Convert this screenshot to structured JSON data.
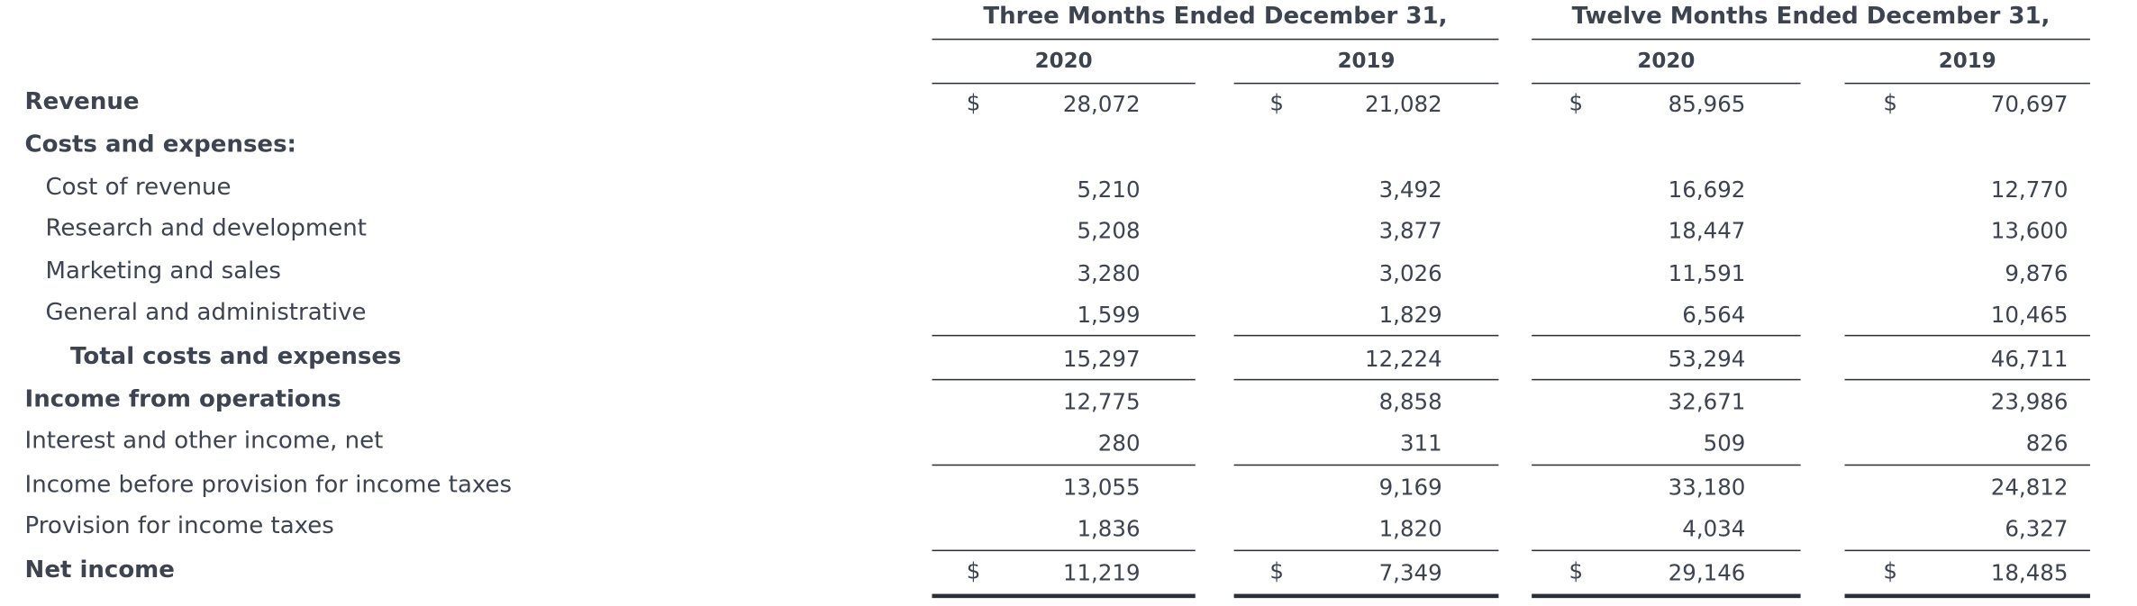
{
  "header": {
    "groups": [
      {
        "title": "Three Months Ended December 31,",
        "years": [
          "2020",
          "2019"
        ]
      },
      {
        "title": "Twelve Months Ended December 31,",
        "years": [
          "2020",
          "2019"
        ]
      }
    ]
  },
  "currency_symbol": "$",
  "rows": [
    {
      "label": "Revenue",
      "style": "bold",
      "dollar": true,
      "values": [
        "28,072",
        "21,082",
        "85,965",
        "70,697"
      ]
    },
    {
      "label": "Costs and expenses:",
      "style": "bold",
      "dollar": false,
      "values": []
    },
    {
      "label": "Cost of revenue",
      "style": "indent",
      "dollar": false,
      "values": [
        "5,210",
        "3,492",
        "16,692",
        "12,770"
      ]
    },
    {
      "label": "Research and development",
      "style": "indent",
      "dollar": false,
      "values": [
        "5,208",
        "3,877",
        "18,447",
        "13,600"
      ]
    },
    {
      "label": "Marketing and sales",
      "style": "indent",
      "dollar": false,
      "values": [
        "3,280",
        "3,026",
        "11,591",
        "9,876"
      ]
    },
    {
      "label": "General and administrative",
      "style": "indent",
      "dollar": false,
      "values": [
        "1,599",
        "1,829",
        "6,564",
        "10,465"
      ]
    },
    {
      "label": "Total costs and expenses",
      "style": "bold-indent",
      "dollar": false,
      "values": [
        "15,297",
        "12,224",
        "53,294",
        "46,711"
      ]
    },
    {
      "label": "Income from operations",
      "style": "bold",
      "dollar": false,
      "values": [
        "12,775",
        "8,858",
        "32,671",
        "23,986"
      ]
    },
    {
      "label": "Interest and other income, net",
      "style": "normal",
      "dollar": false,
      "values": [
        "280",
        "311",
        "509",
        "826"
      ]
    },
    {
      "label": "Income before provision for income taxes",
      "style": "normal",
      "dollar": false,
      "values": [
        "13,055",
        "9,169",
        "33,180",
        "24,812"
      ]
    },
    {
      "label": "Provision for income taxes",
      "style": "normal",
      "dollar": false,
      "values": [
        "1,836",
        "1,820",
        "4,034",
        "6,327"
      ]
    },
    {
      "label": "Net income",
      "style": "bold",
      "dollar": true,
      "values": [
        "11,219",
        "7,349",
        "29,146",
        "18,485"
      ]
    }
  ]
}
